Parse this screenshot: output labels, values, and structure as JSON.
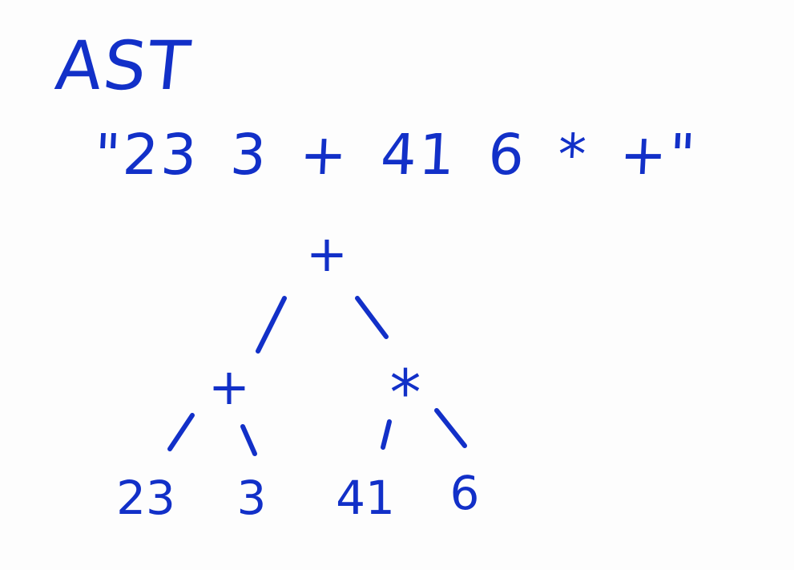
{
  "title": "AST",
  "expression": "\"23 3 + 41 6 * +\"",
  "tree": {
    "root": "+",
    "left": "+",
    "right": "*",
    "leaves": [
      "23",
      "3",
      "41",
      "6"
    ]
  },
  "ink_color": "#1230c8"
}
